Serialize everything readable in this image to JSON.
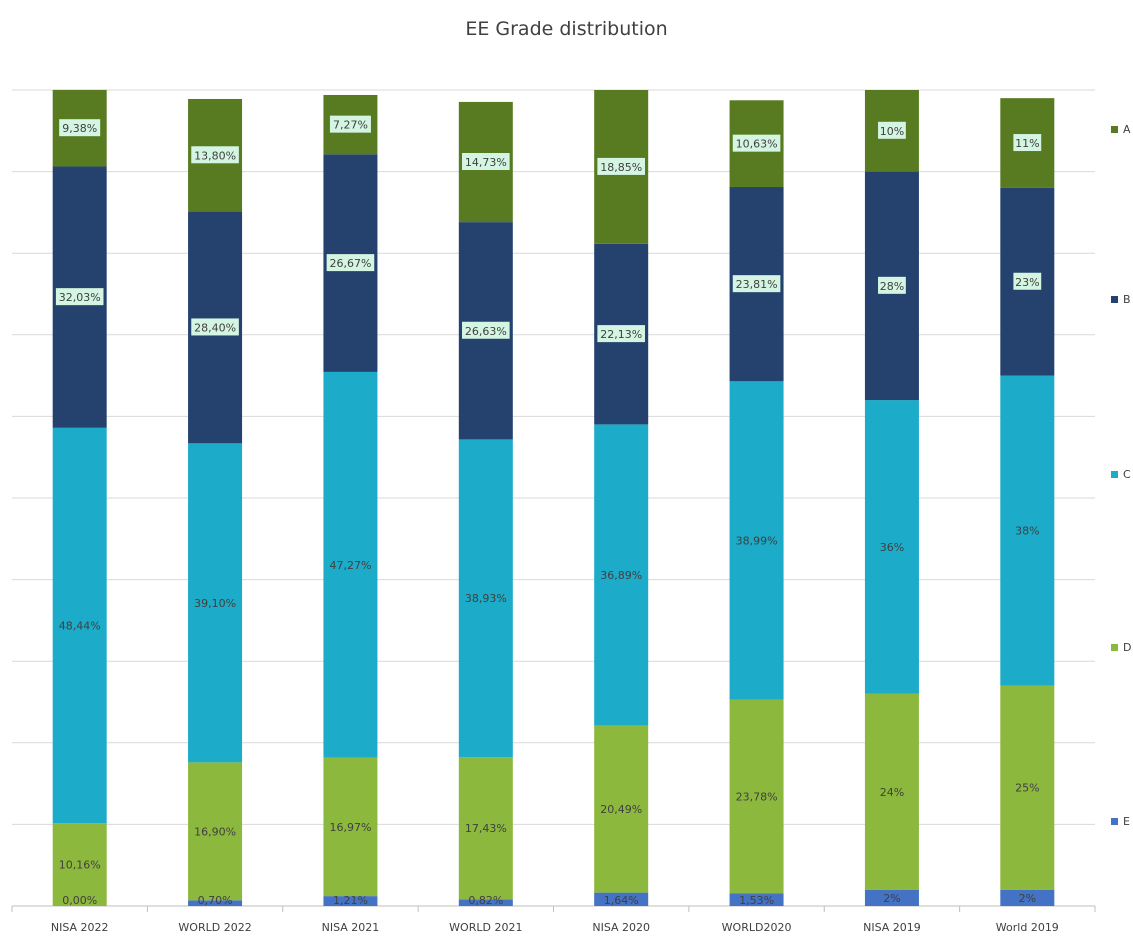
{
  "chart_data": {
    "type": "bar",
    "stacked": true,
    "title": "EE Grade distribution",
    "categories": [
      "NISA 2022",
      "WORLD 2022",
      "NISA 2021",
      "WORLD 2021",
      "NISA 2020",
      "WORLD2020",
      "NISA 2019",
      "World 2019"
    ],
    "series": [
      {
        "name": "E",
        "color": "#4472c4",
        "values": [
          0.0,
          0.7,
          1.21,
          0.82,
          1.64,
          1.53,
          2,
          2
        ],
        "labels": [
          "0,00%",
          "0,70%",
          "1,21%",
          "0,82%",
          "1,64%",
          "1,53%",
          "2%",
          "2%"
        ]
      },
      {
        "name": "D",
        "color": "#8cb83e",
        "values": [
          10.16,
          16.9,
          16.97,
          17.43,
          20.49,
          23.78,
          24,
          25
        ],
        "labels": [
          "10,16%",
          "16,90%",
          "16,97%",
          "17,43%",
          "20,49%",
          "23,78%",
          "24%",
          "25%"
        ]
      },
      {
        "name": "C",
        "color": "#1cabc8",
        "values": [
          48.44,
          39.1,
          47.27,
          38.93,
          36.89,
          38.99,
          36,
          38
        ],
        "labels": [
          "48,44%",
          "39,10%",
          "47,27%",
          "38,93%",
          "36,89%",
          "38,99%",
          "36%",
          "38%"
        ]
      },
      {
        "name": "B",
        "color": "#25426f",
        "values": [
          32.03,
          28.4,
          26.67,
          26.63,
          22.13,
          23.81,
          28,
          23
        ],
        "labels": [
          "32,03%",
          "28,40%",
          "26,67%",
          "26,63%",
          "22,13%",
          "23,81%",
          "28%",
          "23%"
        ]
      },
      {
        "name": "A",
        "color": "#587b22",
        "values": [
          9.38,
          13.8,
          7.27,
          14.73,
          18.85,
          10.63,
          10,
          11
        ],
        "labels": [
          "9,38%",
          "13,80%",
          "7,27%",
          "14,73%",
          "18,85%",
          "10,63%",
          "10%",
          "11%"
        ]
      }
    ],
    "ylim": [
      0,
      100
    ],
    "grid": true,
    "legend": "right",
    "highlighted_label_series": [
      "B",
      "A"
    ],
    "label_highlight_color": "#d5f5e3"
  }
}
